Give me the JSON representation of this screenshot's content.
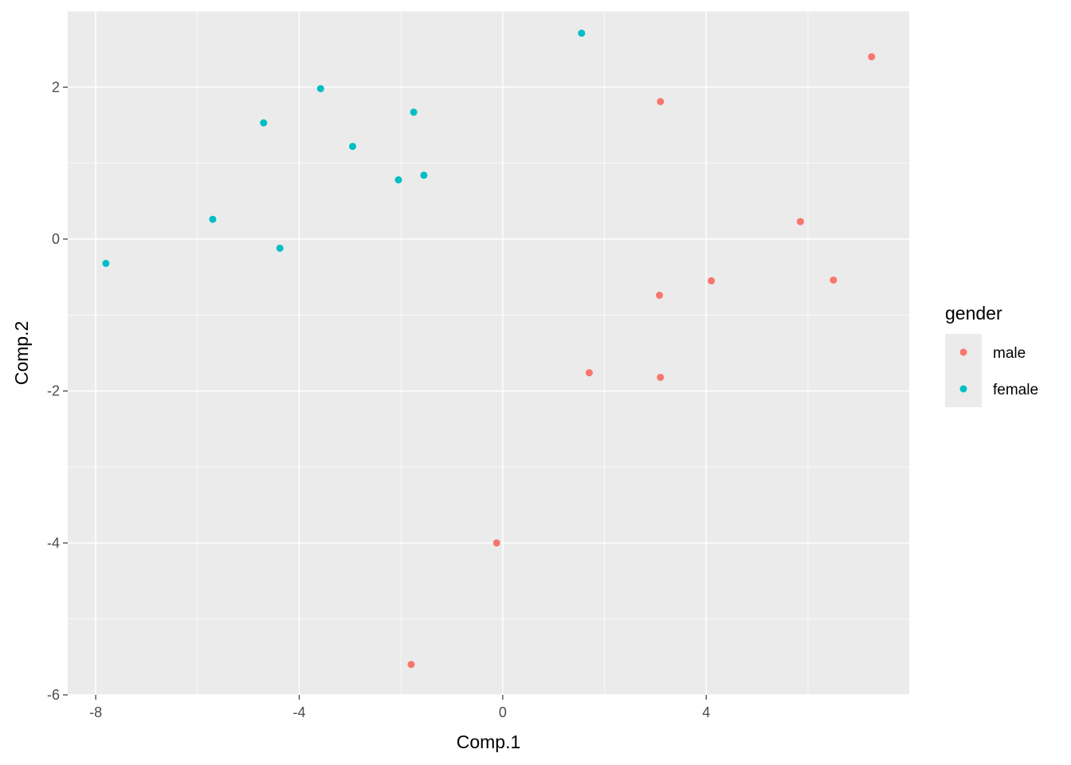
{
  "chart_data": {
    "type": "scatter",
    "xlabel": "Comp.1",
    "ylabel": "Comp.2",
    "xlim": [
      -8.55,
      7.99
    ],
    "ylim": [
      -6.0,
      3.0
    ],
    "x_ticks": [
      -8,
      -4,
      0,
      4
    ],
    "x_tick_labels": [
      "-8",
      "-4",
      "0",
      "4"
    ],
    "y_ticks": [
      -6,
      -4,
      -2,
      0,
      2
    ],
    "y_tick_labels": [
      "-6",
      "-4",
      "-2",
      "0",
      "2"
    ],
    "grid": true,
    "background": "#ebebeb",
    "legend": {
      "title": "gender",
      "position": "right"
    },
    "series": [
      {
        "name": "male",
        "color": "#f8766d",
        "points": [
          {
            "x": 7.25,
            "y": 2.4
          },
          {
            "x": 3.1,
            "y": 1.81
          },
          {
            "x": 5.85,
            "y": 0.23
          },
          {
            "x": 4.1,
            "y": -0.55
          },
          {
            "x": 6.5,
            "y": -0.54
          },
          {
            "x": 3.08,
            "y": -0.74
          },
          {
            "x": 1.7,
            "y": -1.76
          },
          {
            "x": 3.1,
            "y": -1.82
          },
          {
            "x": -0.12,
            "y": -4.0
          },
          {
            "x": -1.8,
            "y": -5.6
          }
        ]
      },
      {
        "name": "female",
        "color": "#00bfc4",
        "points": [
          {
            "x": 1.55,
            "y": 2.71
          },
          {
            "x": -3.58,
            "y": 1.98
          },
          {
            "x": -4.7,
            "y": 1.53
          },
          {
            "x": -1.75,
            "y": 1.67
          },
          {
            "x": -2.95,
            "y": 1.22
          },
          {
            "x": -2.05,
            "y": 0.78
          },
          {
            "x": -1.55,
            "y": 0.84
          },
          {
            "x": -5.7,
            "y": 0.26
          },
          {
            "x": -4.38,
            "y": -0.12
          },
          {
            "x": -7.8,
            "y": -0.32
          }
        ]
      }
    ]
  }
}
